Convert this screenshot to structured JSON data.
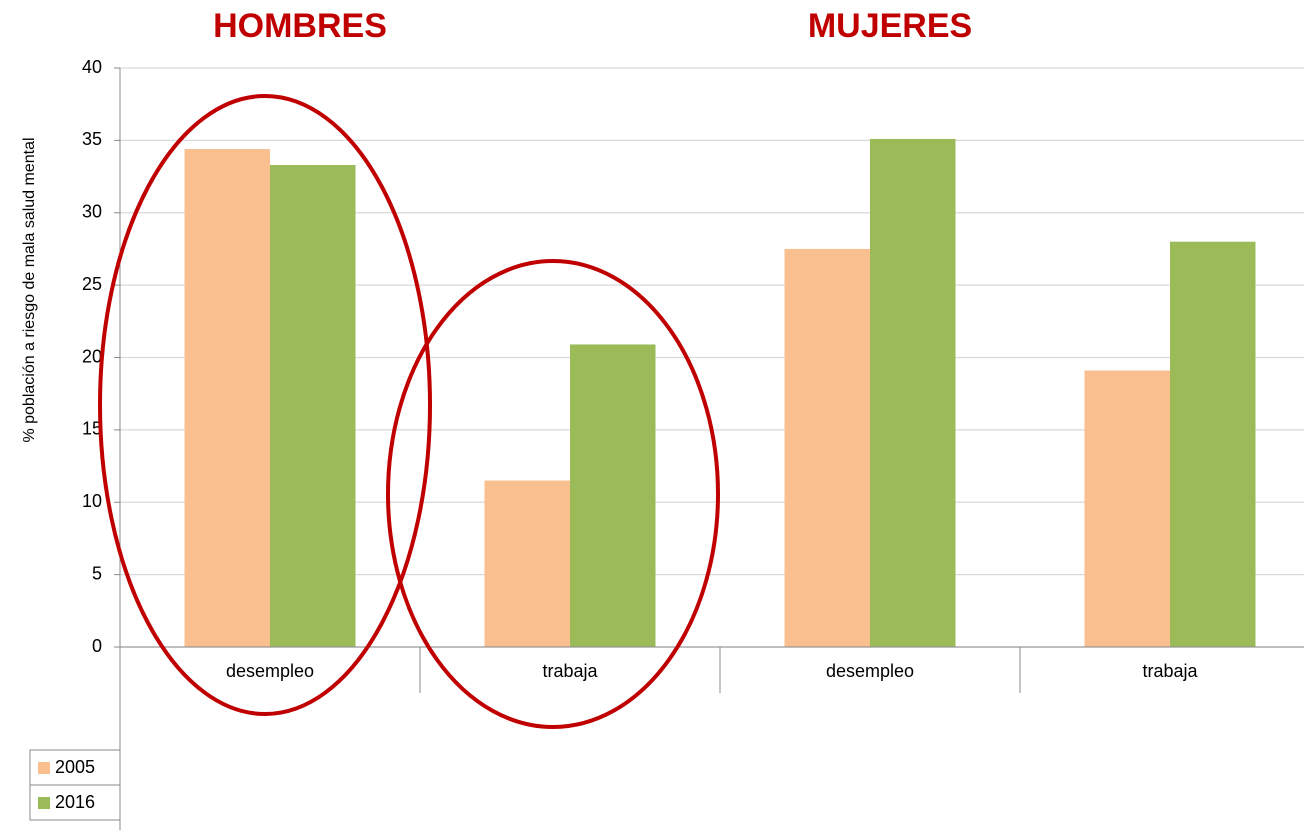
{
  "chart_data": {
    "type": "bar",
    "groups": [
      "HOMBRES",
      "MUJERES"
    ],
    "categories": [
      "desempleo",
      "trabaja",
      "desempleo",
      "trabaja"
    ],
    "series": [
      {
        "name": "2005",
        "color": "#f9bf8f",
        "values": [
          34.4,
          11.5,
          27.5,
          19.1
        ]
      },
      {
        "name": "2016",
        "color": "#9bbb59",
        "values": [
          33.3,
          20.9,
          35.1,
          28.0
        ]
      }
    ],
    "y_label": "% población a riesgo de mala salud mental",
    "ylim": [
      0,
      40
    ],
    "yticks": [
      0,
      5,
      10,
      15,
      20,
      25,
      30,
      35,
      40
    ],
    "grid": true,
    "legend": "bottom-left"
  }
}
